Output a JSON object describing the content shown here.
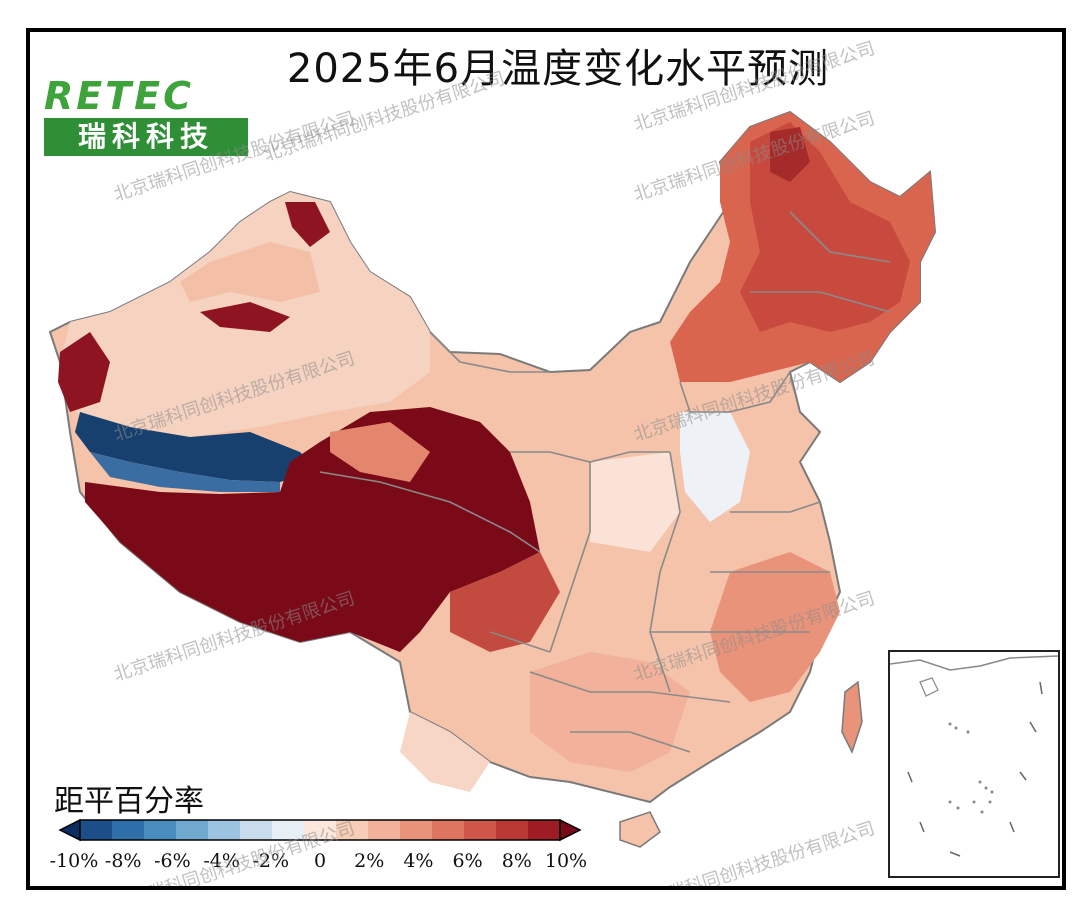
{
  "title": "2025年6月温度变化水平预测",
  "logo": {
    "text_top": "RETEC",
    "text_bottom": "瑞科科技"
  },
  "legend": {
    "title": "距平百分率",
    "tick_labels": [
      "-10%",
      "-8%",
      "-6%",
      "-4%",
      "-2%",
      "0",
      "2%",
      "4%",
      "6%",
      "8%",
      "10%"
    ],
    "colors": [
      "#0b2f63",
      "#1c4f8a",
      "#2f6fa9",
      "#4a8ec0",
      "#6fa9d0",
      "#9cc3df",
      "#c8dced",
      "#e6eef6",
      "#fbe7dc",
      "#f7cdb8",
      "#f2b19a",
      "#e8937a",
      "#de7561",
      "#cf5749",
      "#bb3935",
      "#9e1d25",
      "#7a0a18"
    ]
  },
  "watermark": "北京瑞科同创科技股份有限公司"
}
